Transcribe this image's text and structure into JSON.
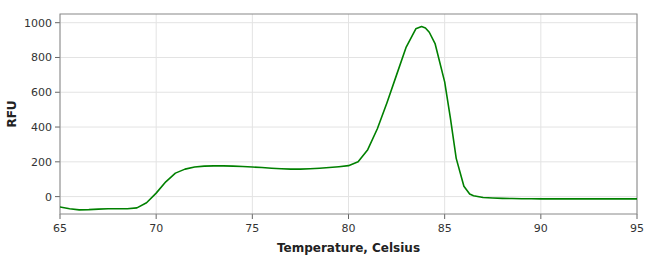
{
  "chart_data": {
    "type": "line",
    "xlabel": "Temperature, Celsius",
    "ylabel": "RFU",
    "x": [
      65.0,
      65.5,
      66.0,
      66.5,
      67.0,
      67.5,
      68.0,
      68.5,
      69.0,
      69.5,
      70.0,
      70.5,
      71.0,
      71.5,
      72.0,
      72.5,
      73.0,
      73.5,
      74.0,
      74.5,
      75.0,
      75.5,
      76.0,
      76.5,
      77.0,
      77.5,
      78.0,
      78.5,
      79.0,
      79.5,
      80.0,
      80.5,
      81.0,
      81.5,
      82.0,
      82.5,
      83.0,
      83.5,
      83.8,
      84.0,
      84.2,
      84.5,
      85.0,
      85.3,
      85.6,
      86.0,
      86.3,
      86.5,
      87.0,
      87.5,
      88.0,
      88.5,
      89.0,
      89.5,
      90.0,
      91.0,
      92.0,
      93.0,
      94.0,
      95.0
    ],
    "values": [
      -60,
      -70,
      -76,
      -75,
      -72,
      -70,
      -70,
      -70,
      -65,
      -35,
      20,
      85,
      135,
      158,
      170,
      175,
      177,
      177,
      175,
      173,
      170,
      167,
      163,
      160,
      158,
      158,
      160,
      163,
      167,
      172,
      178,
      200,
      270,
      390,
      540,
      700,
      860,
      965,
      978,
      970,
      945,
      880,
      660,
      450,
      220,
      60,
      15,
      5,
      -5,
      -8,
      -10,
      -11,
      -12,
      -12,
      -13,
      -13,
      -13,
      -13,
      -13,
      -13
    ],
    "color": "#008000",
    "xlim": [
      65,
      95
    ],
    "ylim": [
      -100,
      1050
    ],
    "xticks": [
      65,
      70,
      75,
      80,
      85,
      90,
      95
    ],
    "yticks": [
      0,
      200,
      400,
      600,
      800,
      1000
    ],
    "grid": true
  }
}
